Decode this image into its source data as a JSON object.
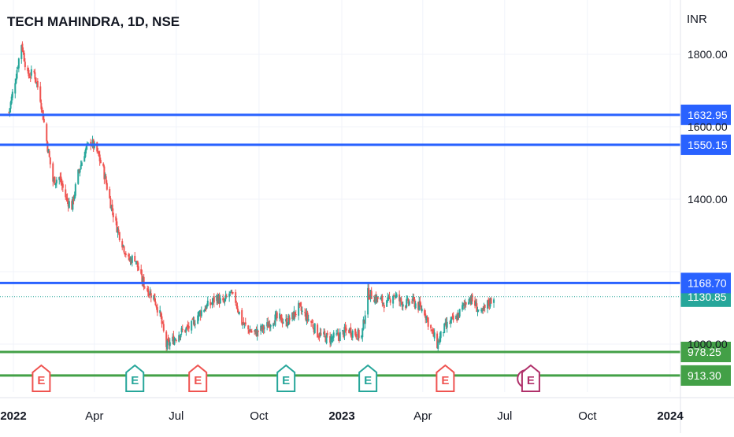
{
  "header": {
    "symbol_title": "TECH MAHINDRA, 1D, NSE",
    "currency": "INR"
  },
  "colors": {
    "up_candle": "#26a69a",
    "down_candle": "#ef5350",
    "resistance_line": "#2962ff",
    "support_line": "#43a047",
    "last_price": "#26a69a",
    "grid": "#f0f3fa",
    "axis_text": "#131722"
  },
  "chart_data": {
    "type": "candlestick",
    "title": "TECH MAHINDRA, 1D, NSE",
    "y_axis_unit": "INR",
    "ylim": [
      950,
      1870
    ],
    "y_ticks": [
      "1800.00",
      "1600.00",
      "1400.00",
      "1000.00"
    ],
    "x_ticks": [
      "2022",
      "Apr",
      "Jul",
      "Oct",
      "2023",
      "Apr",
      "Jul",
      "Oct",
      "2024"
    ],
    "x_tick_dates": [
      "2022-01-01",
      "2022-04-01",
      "2022-07-01",
      "2022-10-01",
      "2023-01-01",
      "2023-04-01",
      "2023-07-01",
      "2023-10-01",
      "2024-01-01"
    ],
    "date_range": [
      "2022-01-01",
      "2024-01-01"
    ],
    "grid": true,
    "horizontal_lines": [
      {
        "value": 1632.95,
        "label": "1632.95",
        "color": "#2962ff"
      },
      {
        "value": 1550.15,
        "label": "1550.15",
        "color": "#2962ff"
      },
      {
        "value": 1168.7,
        "label": "1168.70",
        "color": "#2962ff"
      },
      {
        "value": 978.25,
        "label": "978.25",
        "color": "#43a047"
      },
      {
        "value": 913.3,
        "label": "913.30",
        "color": "#43a047"
      }
    ],
    "last_price": {
      "value": 1130.85,
      "label": "1130.85"
    },
    "price_path": [
      [
        "2021-12-27",
        1640
      ],
      [
        "2022-01-03",
        1730
      ],
      [
        "2022-01-10",
        1830
      ],
      [
        "2022-01-17",
        1740
      ],
      [
        "2022-01-24",
        1750
      ],
      [
        "2022-01-31",
        1680
      ],
      [
        "2022-02-07",
        1560
      ],
      [
        "2022-02-14",
        1450
      ],
      [
        "2022-02-21",
        1460
      ],
      [
        "2022-03-01",
        1400
      ],
      [
        "2022-03-07",
        1380
      ],
      [
        "2022-03-14",
        1470
      ],
      [
        "2022-03-21",
        1530
      ],
      [
        "2022-03-28",
        1560
      ],
      [
        "2022-04-04",
        1530
      ],
      [
        "2022-04-11",
        1480
      ],
      [
        "2022-04-18",
        1400
      ],
      [
        "2022-04-25",
        1330
      ],
      [
        "2022-05-02",
        1280
      ],
      [
        "2022-05-09",
        1230
      ],
      [
        "2022-05-16",
        1240
      ],
      [
        "2022-05-23",
        1180
      ],
      [
        "2022-05-30",
        1150
      ],
      [
        "2022-06-06",
        1130
      ],
      [
        "2022-06-13",
        1080
      ],
      [
        "2022-06-20",
        995
      ],
      [
        "2022-06-27",
        1010
      ],
      [
        "2022-07-04",
        1030
      ],
      [
        "2022-07-11",
        1040
      ],
      [
        "2022-07-18",
        1050
      ],
      [
        "2022-07-25",
        1080
      ],
      [
        "2022-08-01",
        1100
      ],
      [
        "2022-08-08",
        1110
      ],
      [
        "2022-08-15",
        1130
      ],
      [
        "2022-08-22",
        1110
      ],
      [
        "2022-08-29",
        1140
      ],
      [
        "2022-09-05",
        1120
      ],
      [
        "2022-09-12",
        1060
      ],
      [
        "2022-09-19",
        1040
      ],
      [
        "2022-09-26",
        1030
      ],
      [
        "2022-10-03",
        1040
      ],
      [
        "2022-10-10",
        1050
      ],
      [
        "2022-10-17",
        1070
      ],
      [
        "2022-10-24",
        1070
      ],
      [
        "2022-10-31",
        1060
      ],
      [
        "2022-11-07",
        1075
      ],
      [
        "2022-11-14",
        1100
      ],
      [
        "2022-11-21",
        1080
      ],
      [
        "2022-11-28",
        1060
      ],
      [
        "2022-12-05",
        1030
      ],
      [
        "2022-12-12",
        1020
      ],
      [
        "2022-12-19",
        1015
      ],
      [
        "2022-12-26",
        1020
      ],
      [
        "2023-01-02",
        1030
      ],
      [
        "2023-01-09",
        1040
      ],
      [
        "2023-01-16",
        1030
      ],
      [
        "2023-01-23",
        1020
      ],
      [
        "2023-01-30",
        1140
      ],
      [
        "2023-02-06",
        1130
      ],
      [
        "2023-02-13",
        1120
      ],
      [
        "2023-02-20",
        1110
      ],
      [
        "2023-02-27",
        1140
      ],
      [
        "2023-03-06",
        1120
      ],
      [
        "2023-03-13",
        1110
      ],
      [
        "2023-03-20",
        1120
      ],
      [
        "2023-03-27",
        1105
      ],
      [
        "2023-04-03",
        1090
      ],
      [
        "2023-04-10",
        1040
      ],
      [
        "2023-04-17",
        1000
      ],
      [
        "2023-04-24",
        1040
      ],
      [
        "2023-05-01",
        1060
      ],
      [
        "2023-05-08",
        1070
      ],
      [
        "2023-05-15",
        1100
      ],
      [
        "2023-05-22",
        1130
      ],
      [
        "2023-05-29",
        1110
      ],
      [
        "2023-06-05",
        1080
      ],
      [
        "2023-06-12",
        1110
      ],
      [
        "2023-06-19",
        1131
      ]
    ],
    "event_markers": [
      {
        "type": "earnings",
        "label": "E",
        "date": "2022-02-01",
        "color": "#ef5350"
      },
      {
        "type": "earnings",
        "label": "E",
        "date": "2022-05-16",
        "color": "#26a69a"
      },
      {
        "type": "earnings",
        "label": "E",
        "date": "2022-07-25",
        "color": "#ef5350"
      },
      {
        "type": "earnings",
        "label": "E",
        "date": "2022-10-31",
        "color": "#26a69a"
      },
      {
        "type": "earnings",
        "label": "E",
        "date": "2023-01-30",
        "color": "#26a69a"
      },
      {
        "type": "earnings",
        "label": "E",
        "date": "2023-04-26",
        "color": "#ef5350"
      },
      {
        "type": "split-dividend",
        "label": "⚡",
        "date": "2023-07-25",
        "color": "#b0306a"
      },
      {
        "type": "earnings",
        "label": "E",
        "date": "2023-07-30",
        "color": "#b0306a"
      }
    ]
  }
}
